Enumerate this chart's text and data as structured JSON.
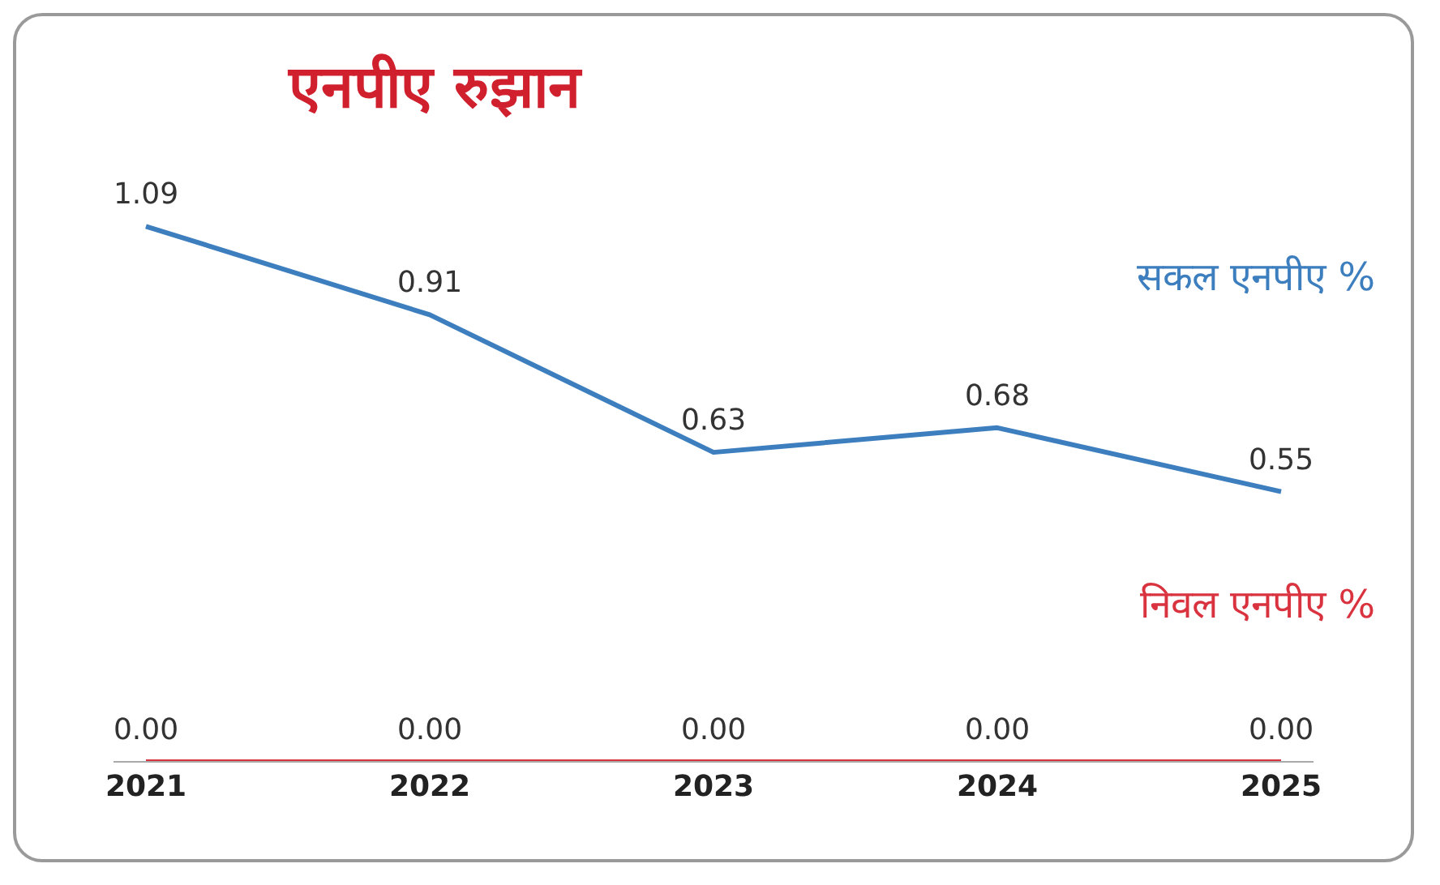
{
  "chart_data": {
    "type": "line",
    "title": "एनपीए रुझान",
    "categories": [
      "2021",
      "2022",
      "2023",
      "2024",
      "2025"
    ],
    "series": [
      {
        "name": "सकल एनपीए %",
        "color": "#3d7ebf",
        "values": [
          1.09,
          0.91,
          0.63,
          0.68,
          0.55
        ],
        "value_labels": [
          "1.09",
          "0.91",
          "0.63",
          "0.68",
          "0.55"
        ]
      },
      {
        "name": "निवल एनपीए %",
        "color": "#d9333f",
        "values": [
          0,
          0,
          0,
          0,
          0
        ],
        "value_labels": [
          "0.00",
          "0.00",
          "0.00",
          "0.00",
          "0.00"
        ]
      }
    ],
    "marker": "none",
    "legend": false
  }
}
